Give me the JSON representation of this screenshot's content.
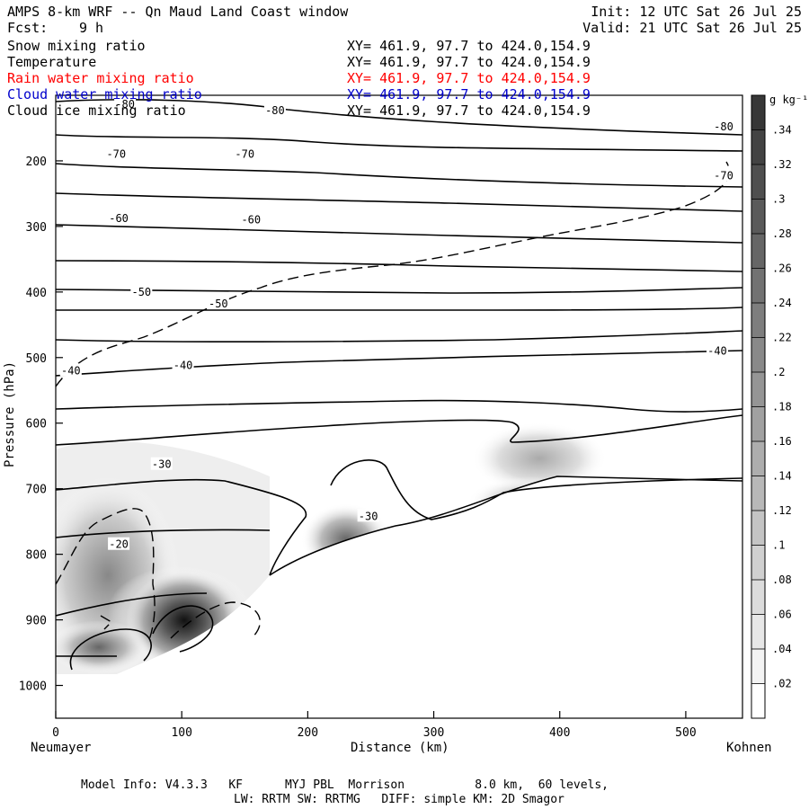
{
  "header": {
    "title": "AMPS 8-km WRF -- Qn Maud Land Coast window",
    "fcst_label": "Fcst:",
    "fcst_value": "9 h",
    "init": "Init: 12 UTC Sat 26 Jul 25",
    "valid": "Valid: 21 UTC Sat 26 Jul 25"
  },
  "fields": [
    {
      "name": "Snow mixing ratio",
      "xy": "XY= 461.9, 97.7 to 424.0,154.9",
      "color": "#000000"
    },
    {
      "name": "Temperature",
      "xy": "XY= 461.9, 97.7 to 424.0,154.9",
      "color": "#000000"
    },
    {
      "name": "Rain water mixing ratio",
      "xy": "XY= 461.9, 97.7 to 424.0,154.9",
      "color": "#ff0000"
    },
    {
      "name": "Cloud water mixing ratio",
      "xy": "XY= 461.9, 97.7 to 424.0,154.9",
      "color": "#0000cc"
    },
    {
      "name": "Cloud ice mixing ratio",
      "xy": "XY= 461.9, 97.7 to 424.0,154.9",
      "color": "#000000"
    }
  ],
  "axes": {
    "ylabel": "Pressure (hPa)",
    "xlabel": "Distance (km)",
    "left_station": "Neumayer",
    "right_station": "Kohnen"
  },
  "colorbar": {
    "unit": "g kg⁻¹",
    "ticks": [
      ".02",
      ".04",
      ".06",
      ".08",
      ".1",
      ".12",
      ".14",
      ".16",
      ".18",
      ".2",
      ".22",
      ".24",
      ".26",
      ".28",
      ".3",
      ".32",
      ".34"
    ]
  },
  "footer": {
    "line1": "Model Info: V4.3.3   KF      MYJ PBL  Morrison          8.0 km,  60 levels,",
    "line2": "LW: RRTM SW: RRTMG   DIFF: simple KM: 2D Smagor"
  },
  "chart_data": {
    "type": "heatmap",
    "x_ticks": [
      0,
      100,
      200,
      300,
      400,
      500
    ],
    "y_ticks": [
      200,
      300,
      400,
      500,
      600,
      700,
      800,
      900,
      1000
    ],
    "xlim": [
      0,
      545
    ],
    "ylim": [
      1050,
      100
    ],
    "contour_labels": [
      {
        "text": "-80",
        "x": 55,
        "y": 114
      },
      {
        "text": "-80",
        "x": 174,
        "y": 123
      },
      {
        "text": "-80",
        "x": 530,
        "y": 148
      },
      {
        "text": "-70",
        "x": 48,
        "y": 190
      },
      {
        "text": "-70",
        "x": 150,
        "y": 190
      },
      {
        "text": "-70",
        "x": 530,
        "y": 223
      },
      {
        "text": "-60",
        "x": 50,
        "y": 288
      },
      {
        "text": "-60",
        "x": 155,
        "y": 290
      },
      {
        "text": "-50",
        "x": 68,
        "y": 400
      },
      {
        "text": "-50",
        "x": 129,
        "y": 418
      },
      {
        "text": "-40",
        "x": 12,
        "y": 520
      },
      {
        "text": "-40",
        "x": 101,
        "y": 512
      },
      {
        "text": "-40",
        "x": 525,
        "y": 490
      },
      {
        "text": "-30",
        "x": 84,
        "y": 663
      },
      {
        "text": "-30",
        "x": 248,
        "y": 742
      },
      {
        "text": "-20",
        "x": 50,
        "y": 785
      }
    ],
    "shading": [
      {
        "x": 100,
        "y": 880,
        "value": 0.34
      },
      {
        "x": 60,
        "y": 760,
        "value": 0.1
      },
      {
        "x": 160,
        "y": 730,
        "value": 0.08
      },
      {
        "x": 240,
        "y": 780,
        "value": 0.18
      },
      {
        "x": 390,
        "y": 660,
        "value": 0.12
      }
    ]
  }
}
